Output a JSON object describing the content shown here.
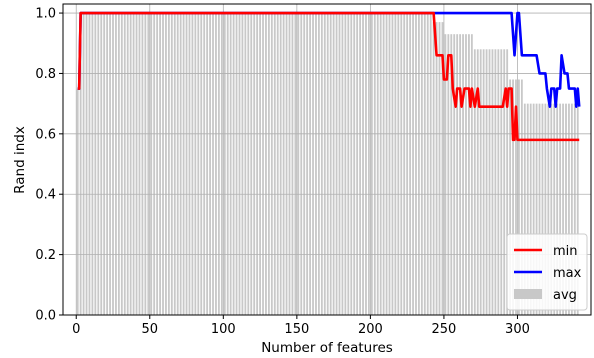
{
  "chart_data": {
    "type": "bar",
    "xlabel": "Number of features",
    "ylabel": "Rand indx",
    "xlim": [
      -9,
      350
    ],
    "ylim": [
      0.0,
      1.03
    ],
    "xticks": [
      0,
      50,
      100,
      150,
      200,
      250,
      300
    ],
    "xtick_labels": [
      "0",
      "50",
      "100",
      "150",
      "200",
      "250",
      "300"
    ],
    "yticks": [
      0.0,
      0.2,
      0.4,
      0.6,
      0.8,
      1.0
    ],
    "ytick_labels": [
      "0.0",
      "0.2",
      "0.4",
      "0.6",
      "0.8",
      "1.0"
    ],
    "grid": true,
    "legend_placement": "lower-right",
    "colors": {
      "min": "#ff0000",
      "max": "#0000ff",
      "avg": "#c8c8c8",
      "grid": "#b0b0b0"
    },
    "series": [
      {
        "name": "min",
        "style": "line",
        "points": [
          [
            1,
            0.75
          ],
          [
            2,
            0.75
          ],
          [
            3,
            1.0
          ],
          [
            243,
            1.0
          ],
          [
            245,
            0.86
          ],
          [
            249,
            0.86
          ],
          [
            250,
            0.78
          ],
          [
            252,
            0.78
          ],
          [
            253,
            0.86
          ],
          [
            255,
            0.86
          ],
          [
            256,
            0.75
          ],
          [
            258,
            0.69
          ],
          [
            259,
            0.75
          ],
          [
            261,
            0.75
          ],
          [
            262,
            0.69
          ],
          [
            264,
            0.75
          ],
          [
            267,
            0.75
          ],
          [
            268,
            0.69
          ],
          [
            269,
            0.75
          ],
          [
            271,
            0.69
          ],
          [
            273,
            0.75
          ],
          [
            274,
            0.69
          ],
          [
            290,
            0.69
          ],
          [
            292,
            0.75
          ],
          [
            293,
            0.69
          ],
          [
            294,
            0.75
          ],
          [
            296,
            0.75
          ],
          [
            297,
            0.58
          ],
          [
            298,
            0.58
          ],
          [
            299,
            0.69
          ],
          [
            300,
            0.58
          ],
          [
            342,
            0.58
          ]
        ]
      },
      {
        "name": "max",
        "style": "line",
        "points": [
          [
            1,
            0.75
          ],
          [
            2,
            0.75
          ],
          [
            3,
            1.0
          ],
          [
            296,
            1.0
          ],
          [
            298,
            0.86
          ],
          [
            300,
            1.0
          ],
          [
            301,
            1.0
          ],
          [
            303,
            0.86
          ],
          [
            313,
            0.86
          ],
          [
            315,
            0.8
          ],
          [
            319,
            0.8
          ],
          [
            320,
            0.75
          ],
          [
            322,
            0.69
          ],
          [
            323,
            0.75
          ],
          [
            325,
            0.75
          ],
          [
            326,
            0.69
          ],
          [
            327,
            0.75
          ],
          [
            329,
            0.75
          ],
          [
            330,
            0.86
          ],
          [
            332,
            0.8
          ],
          [
            334,
            0.8
          ],
          [
            335,
            0.75
          ],
          [
            339,
            0.75
          ],
          [
            340,
            0.69
          ],
          [
            341,
            0.75
          ],
          [
            342,
            0.69
          ]
        ]
      },
      {
        "name": "avg",
        "style": "bar",
        "x_start": 1,
        "x_end": 342,
        "step": 2,
        "segments": [
          [
            1,
            2,
            0.75
          ],
          [
            3,
            241,
            1.0
          ],
          [
            243,
            250,
            0.97
          ],
          [
            251,
            270,
            0.93
          ],
          [
            271,
            294,
            0.88
          ],
          [
            295,
            304,
            0.78
          ],
          [
            305,
            342,
            0.7
          ]
        ]
      }
    ]
  }
}
